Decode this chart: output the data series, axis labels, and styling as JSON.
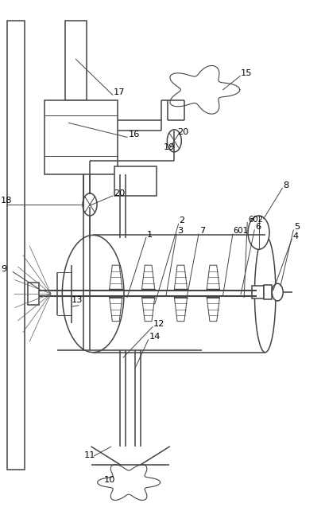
{
  "fig_width": 4.1,
  "fig_height": 6.42,
  "dpi": 100,
  "bg_color": "#ffffff",
  "line_color": "#444444",
  "line_width": 1.1,
  "thin_lw": 0.7
}
